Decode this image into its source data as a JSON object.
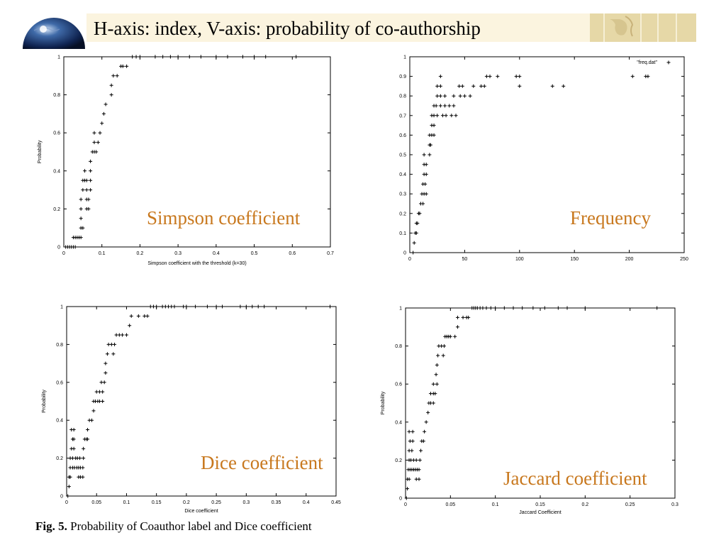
{
  "slide": {
    "title": "H-axis: index, V-axis: probability of co-authorship",
    "caption_prefix": "Fig. 5.",
    "caption_text": "Probability of Coauthor label and Dice coefficient",
    "label_color": "#c8781e",
    "icons": [
      "globe-icon",
      "world-map-icon"
    ]
  },
  "chart_data": [
    {
      "type": "scatter",
      "panel_label": "Simpson coefficient",
      "xlabel": "Simpson coefficient with the threshold (k=30)",
      "ylabel": "Probability",
      "xlim": [
        0,
        0.7
      ],
      "ylim": [
        0,
        1
      ],
      "xticks": [
        "0",
        "0.1",
        "0.2",
        "0.3",
        "0.4",
        "0.5",
        "0.6",
        "0.7"
      ],
      "yticks": [
        "0",
        "0.2",
        "0.4",
        "0.6",
        "0.8",
        "1"
      ],
      "legend": "",
      "points": [
        [
          0.005,
          0
        ],
        [
          0.01,
          0
        ],
        [
          0.015,
          0
        ],
        [
          0.02,
          0
        ],
        [
          0.025,
          0
        ],
        [
          0.03,
          0
        ],
        [
          0.025,
          0.05
        ],
        [
          0.03,
          0.05
        ],
        [
          0.035,
          0.05
        ],
        [
          0.04,
          0.05
        ],
        [
          0.045,
          0.05
        ],
        [
          0.045,
          0.1
        ],
        [
          0.05,
          0.1
        ],
        [
          0.045,
          0.15
        ],
        [
          0.045,
          0.2
        ],
        [
          0.06,
          0.2
        ],
        [
          0.065,
          0.2
        ],
        [
          0.045,
          0.25
        ],
        [
          0.06,
          0.25
        ],
        [
          0.065,
          0.25
        ],
        [
          0.05,
          0.3
        ],
        [
          0.06,
          0.3
        ],
        [
          0.07,
          0.3
        ],
        [
          0.05,
          0.35
        ],
        [
          0.055,
          0.35
        ],
        [
          0.06,
          0.35
        ],
        [
          0.07,
          0.35
        ],
        [
          0.055,
          0.4
        ],
        [
          0.07,
          0.4
        ],
        [
          0.07,
          0.45
        ],
        [
          0.075,
          0.5
        ],
        [
          0.08,
          0.5
        ],
        [
          0.085,
          0.5
        ],
        [
          0.08,
          0.55
        ],
        [
          0.09,
          0.55
        ],
        [
          0.08,
          0.6
        ],
        [
          0.095,
          0.6
        ],
        [
          0.1,
          0.65
        ],
        [
          0.105,
          0.7
        ],
        [
          0.11,
          0.75
        ],
        [
          0.125,
          0.8
        ],
        [
          0.125,
          0.85
        ],
        [
          0.13,
          0.9
        ],
        [
          0.14,
          0.9
        ],
        [
          0.15,
          0.95
        ],
        [
          0.155,
          0.95
        ],
        [
          0.165,
          0.95
        ],
        [
          0.18,
          1
        ],
        [
          0.19,
          1
        ],
        [
          0.2,
          1
        ],
        [
          0.24,
          1
        ],
        [
          0.26,
          1
        ],
        [
          0.28,
          1
        ],
        [
          0.3,
          1
        ],
        [
          0.33,
          1
        ],
        [
          0.36,
          1
        ],
        [
          0.4,
          1
        ],
        [
          0.43,
          1
        ],
        [
          0.47,
          1
        ],
        [
          0.5,
          1
        ],
        [
          0.53,
          1
        ],
        [
          0.61,
          1
        ]
      ]
    },
    {
      "type": "scatter",
      "panel_label": "Frequency",
      "xlabel": "",
      "ylabel": "",
      "xlim": [
        0,
        250
      ],
      "ylim": [
        0,
        1
      ],
      "xticks": [
        "0",
        "50",
        "100",
        "150",
        "200",
        "250"
      ],
      "yticks": [
        "0",
        "0.1",
        "0.2",
        "0.3",
        "0.4",
        "0.5",
        "0.6",
        "0.7",
        "0.8",
        "0.9",
        "1"
      ],
      "legend": "\"freq.dat\"",
      "legend_placement": "top-right",
      "points": [
        [
          3,
          0
        ],
        [
          4,
          0.05
        ],
        [
          5,
          0.1
        ],
        [
          6,
          0.1
        ],
        [
          6,
          0.15
        ],
        [
          7,
          0.15
        ],
        [
          8,
          0.2
        ],
        [
          9,
          0.2
        ],
        [
          10,
          0.25
        ],
        [
          12,
          0.25
        ],
        [
          11,
          0.3
        ],
        [
          13,
          0.3
        ],
        [
          15,
          0.3
        ],
        [
          12,
          0.35
        ],
        [
          14,
          0.35
        ],
        [
          13,
          0.4
        ],
        [
          15,
          0.4
        ],
        [
          13,
          0.45
        ],
        [
          15,
          0.45
        ],
        [
          13,
          0.5
        ],
        [
          18,
          0.5
        ],
        [
          18,
          0.55
        ],
        [
          19,
          0.55
        ],
        [
          18,
          0.6
        ],
        [
          20,
          0.6
        ],
        [
          22,
          0.6
        ],
        [
          20,
          0.65
        ],
        [
          22,
          0.65
        ],
        [
          20,
          0.7
        ],
        [
          22,
          0.7
        ],
        [
          25,
          0.7
        ],
        [
          30,
          0.7
        ],
        [
          33,
          0.7
        ],
        [
          38,
          0.7
        ],
        [
          42,
          0.7
        ],
        [
          22,
          0.75
        ],
        [
          24,
          0.75
        ],
        [
          28,
          0.75
        ],
        [
          32,
          0.75
        ],
        [
          36,
          0.75
        ],
        [
          40,
          0.75
        ],
        [
          25,
          0.8
        ],
        [
          28,
          0.8
        ],
        [
          32,
          0.8
        ],
        [
          40,
          0.8
        ],
        [
          46,
          0.8
        ],
        [
          50,
          0.8
        ],
        [
          55,
          0.8
        ],
        [
          25,
          0.85
        ],
        [
          28,
          0.85
        ],
        [
          45,
          0.85
        ],
        [
          48,
          0.85
        ],
        [
          58,
          0.85
        ],
        [
          65,
          0.85
        ],
        [
          68,
          0.85
        ],
        [
          100,
          0.85
        ],
        [
          130,
          0.85
        ],
        [
          140,
          0.85
        ],
        [
          28,
          0.9
        ],
        [
          70,
          0.9
        ],
        [
          73,
          0.9
        ],
        [
          80,
          0.9
        ],
        [
          97,
          0.9
        ],
        [
          100,
          0.9
        ],
        [
          203,
          0.9
        ],
        [
          215,
          0.9
        ],
        [
          217,
          0.9
        ]
      ]
    },
    {
      "type": "scatter",
      "panel_label": "Dice coefficient",
      "xlabel": "Dice coefficient",
      "ylabel": "Probability",
      "xlim": [
        0,
        0.45
      ],
      "ylim": [
        0,
        1
      ],
      "xticks": [
        "0",
        "0.05",
        "0.1",
        "0.15",
        "0.2",
        "0.25",
        "0.3",
        "0.35",
        "0.4",
        "0.45"
      ],
      "yticks": [
        "0",
        "0.2",
        "0.4",
        "0.6",
        "0.8",
        "1"
      ],
      "legend": "",
      "points": [
        [
          0.002,
          0
        ],
        [
          0.004,
          0.05
        ],
        [
          0.004,
          0.1
        ],
        [
          0.006,
          0.1
        ],
        [
          0.02,
          0.1
        ],
        [
          0.023,
          0.1
        ],
        [
          0.027,
          0.1
        ],
        [
          0.006,
          0.15
        ],
        [
          0.01,
          0.15
        ],
        [
          0.013,
          0.15
        ],
        [
          0.017,
          0.15
        ],
        [
          0.02,
          0.15
        ],
        [
          0.023,
          0.15
        ],
        [
          0.027,
          0.15
        ],
        [
          0.006,
          0.2
        ],
        [
          0.01,
          0.2
        ],
        [
          0.015,
          0.2
        ],
        [
          0.018,
          0.2
        ],
        [
          0.022,
          0.2
        ],
        [
          0.028,
          0.2
        ],
        [
          0.008,
          0.25
        ],
        [
          0.012,
          0.25
        ],
        [
          0.028,
          0.25
        ],
        [
          0.01,
          0.3
        ],
        [
          0.012,
          0.3
        ],
        [
          0.03,
          0.3
        ],
        [
          0.033,
          0.3
        ],
        [
          0.035,
          0.3
        ],
        [
          0.008,
          0.35
        ],
        [
          0.012,
          0.35
        ],
        [
          0.035,
          0.35
        ],
        [
          0.038,
          0.4
        ],
        [
          0.042,
          0.4
        ],
        [
          0.045,
          0.45
        ],
        [
          0.045,
          0.5
        ],
        [
          0.048,
          0.5
        ],
        [
          0.052,
          0.5
        ],
        [
          0.055,
          0.5
        ],
        [
          0.06,
          0.5
        ],
        [
          0.05,
          0.55
        ],
        [
          0.055,
          0.55
        ],
        [
          0.06,
          0.55
        ],
        [
          0.058,
          0.6
        ],
        [
          0.063,
          0.6
        ],
        [
          0.065,
          0.65
        ],
        [
          0.065,
          0.7
        ],
        [
          0.068,
          0.75
        ],
        [
          0.078,
          0.75
        ],
        [
          0.07,
          0.8
        ],
        [
          0.075,
          0.8
        ],
        [
          0.08,
          0.8
        ],
        [
          0.083,
          0.85
        ],
        [
          0.088,
          0.85
        ],
        [
          0.093,
          0.85
        ],
        [
          0.1,
          0.85
        ],
        [
          0.105,
          0.9
        ],
        [
          0.108,
          0.95
        ],
        [
          0.12,
          0.95
        ],
        [
          0.13,
          0.95
        ],
        [
          0.135,
          0.95
        ],
        [
          0.14,
          1
        ],
        [
          0.145,
          1
        ],
        [
          0.15,
          1
        ],
        [
          0.16,
          1
        ],
        [
          0.165,
          1
        ],
        [
          0.17,
          1
        ],
        [
          0.175,
          1
        ],
        [
          0.18,
          1
        ],
        [
          0.195,
          1
        ],
        [
          0.2,
          1
        ],
        [
          0.215,
          1
        ],
        [
          0.235,
          1
        ],
        [
          0.25,
          1
        ],
        [
          0.26,
          1
        ],
        [
          0.29,
          1
        ],
        [
          0.3,
          1
        ],
        [
          0.31,
          1
        ],
        [
          0.32,
          1
        ],
        [
          0.33,
          1
        ],
        [
          0.44,
          1
        ]
      ]
    },
    {
      "type": "scatter",
      "panel_label": "Jaccard coefficient",
      "xlabel": "Jaccard Coefficient",
      "ylabel": "Probability",
      "xlim": [
        0,
        0.3
      ],
      "ylim": [
        0,
        1
      ],
      "xticks": [
        "0",
        "0.05",
        "0.1",
        "0.15",
        "0.2",
        "0.25",
        "0.3"
      ],
      "yticks": [
        "0",
        "0.2",
        "0.4",
        "0.6",
        "0.8",
        "1"
      ],
      "legend": "",
      "points": [
        [
          0.001,
          0
        ],
        [
          0.002,
          0.05
        ],
        [
          0.002,
          0.1
        ],
        [
          0.004,
          0.1
        ],
        [
          0.012,
          0.1
        ],
        [
          0.015,
          0.1
        ],
        [
          0.003,
          0.15
        ],
        [
          0.005,
          0.15
        ],
        [
          0.007,
          0.15
        ],
        [
          0.009,
          0.15
        ],
        [
          0.011,
          0.15
        ],
        [
          0.013,
          0.15
        ],
        [
          0.015,
          0.15
        ],
        [
          0.004,
          0.2
        ],
        [
          0.006,
          0.2
        ],
        [
          0.009,
          0.2
        ],
        [
          0.012,
          0.2
        ],
        [
          0.016,
          0.2
        ],
        [
          0.004,
          0.25
        ],
        [
          0.007,
          0.25
        ],
        [
          0.017,
          0.25
        ],
        [
          0.005,
          0.3
        ],
        [
          0.008,
          0.3
        ],
        [
          0.018,
          0.3
        ],
        [
          0.02,
          0.3
        ],
        [
          0.004,
          0.35
        ],
        [
          0.008,
          0.35
        ],
        [
          0.021,
          0.35
        ],
        [
          0.023,
          0.4
        ],
        [
          0.025,
          0.45
        ],
        [
          0.026,
          0.5
        ],
        [
          0.028,
          0.5
        ],
        [
          0.031,
          0.5
        ],
        [
          0.028,
          0.55
        ],
        [
          0.031,
          0.55
        ],
        [
          0.033,
          0.55
        ],
        [
          0.031,
          0.6
        ],
        [
          0.035,
          0.6
        ],
        [
          0.034,
          0.65
        ],
        [
          0.035,
          0.7
        ],
        [
          0.036,
          0.75
        ],
        [
          0.042,
          0.75
        ],
        [
          0.037,
          0.8
        ],
        [
          0.04,
          0.8
        ],
        [
          0.043,
          0.8
        ],
        [
          0.044,
          0.85
        ],
        [
          0.046,
          0.85
        ],
        [
          0.048,
          0.85
        ],
        [
          0.05,
          0.85
        ],
        [
          0.055,
          0.85
        ],
        [
          0.058,
          0.9
        ],
        [
          0.058,
          0.95
        ],
        [
          0.064,
          0.95
        ],
        [
          0.068,
          0.95
        ],
        [
          0.07,
          0.95
        ],
        [
          0.074,
          1
        ],
        [
          0.076,
          1
        ],
        [
          0.078,
          1
        ],
        [
          0.08,
          1
        ],
        [
          0.083,
          1
        ],
        [
          0.086,
          1
        ],
        [
          0.09,
          1
        ],
        [
          0.095,
          1
        ],
        [
          0.1,
          1
        ],
        [
          0.11,
          1
        ],
        [
          0.12,
          1
        ],
        [
          0.13,
          1
        ],
        [
          0.142,
          1
        ],
        [
          0.155,
          1
        ],
        [
          0.17,
          1
        ],
        [
          0.18,
          1
        ],
        [
          0.2,
          1
        ],
        [
          0.28,
          1
        ]
      ]
    }
  ]
}
